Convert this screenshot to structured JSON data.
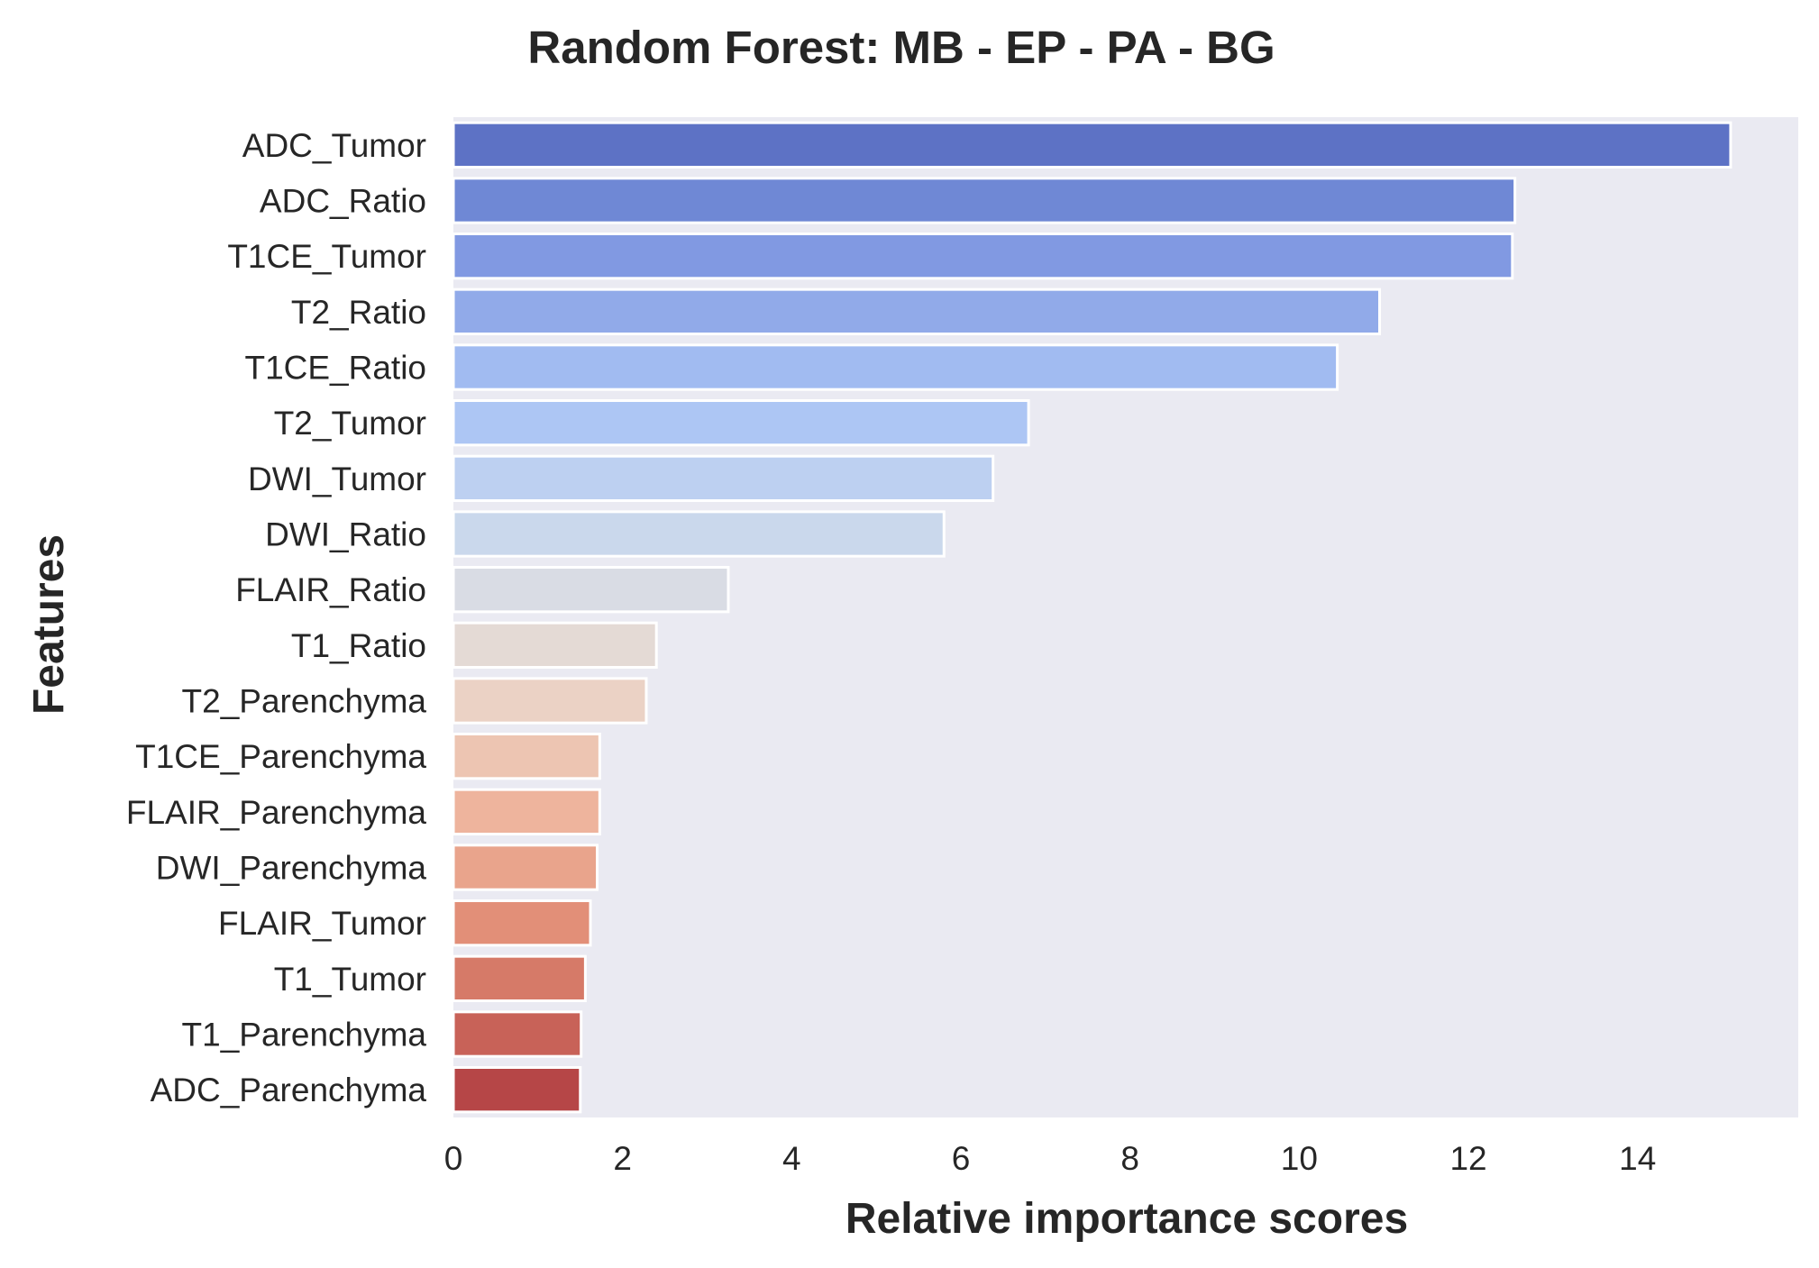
{
  "chart_data": {
    "type": "bar",
    "orientation": "horizontal",
    "title": "Random Forest: MB - EP - PA - BG",
    "xlabel": "Relative importance scores",
    "ylabel": "Features",
    "xlim": [
      0,
      15.9
    ],
    "xticks": [
      0,
      2,
      4,
      6,
      8,
      10,
      12,
      14
    ],
    "grid": false,
    "plot_background": "#eaeaf2",
    "categories": [
      "ADC_Tumor",
      "ADC_Ratio",
      "T1CE_Tumor",
      "T2_Ratio",
      "T1CE_Ratio",
      "T2_Tumor",
      "DWI_Tumor",
      "DWI_Ratio",
      "FLAIR_Ratio",
      "T1_Ratio",
      "T2_Parenchyma",
      "T1CE_Parenchyma",
      "FLAIR_Parenchyma",
      "DWI_Parenchyma",
      "FLAIR_Tumor",
      "T1_Tumor",
      "T1_Parenchyma",
      "ADC_Parenchyma"
    ],
    "values": [
      15.1,
      12.55,
      12.52,
      10.95,
      10.45,
      6.8,
      6.38,
      5.8,
      3.25,
      2.4,
      2.28,
      1.73,
      1.73,
      1.7,
      1.62,
      1.56,
      1.51,
      1.5
    ],
    "colors": [
      "#5d72c5",
      "#6f88d5",
      "#8199e2",
      "#91aae9",
      "#a1bbf1",
      "#adc6f4",
      "#bdd0f1",
      "#cad8ec",
      "#d9dce4",
      "#e4dad5",
      "#ebd2c5",
      "#edc5b2",
      "#eeb49d",
      "#e9a48c",
      "#e28f78",
      "#d67a68",
      "#c86258",
      "#b64647"
    ]
  }
}
